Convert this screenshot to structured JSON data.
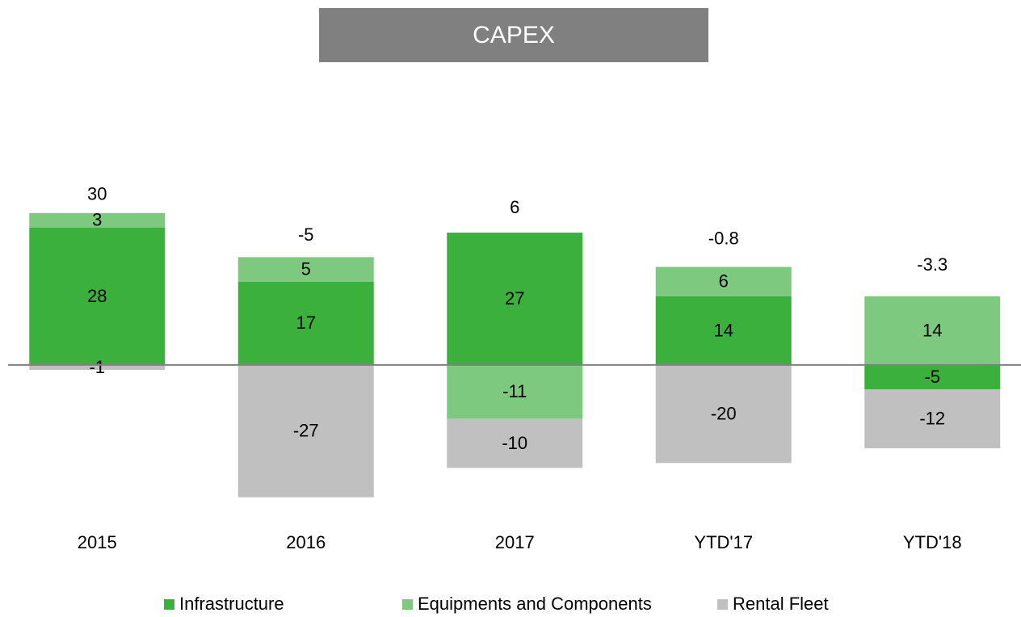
{
  "chart_data": {
    "type": "stacked_bar",
    "title": "CAPEX",
    "categories": [
      "2015",
      "2016",
      "2017",
      "YTD'17",
      "YTD'18"
    ],
    "series": [
      {
        "name": "Infrastructure",
        "color": "#3cb03c",
        "values": [
          28,
          17,
          27,
          14,
          -5
        ]
      },
      {
        "name": "Equipments and Components",
        "color": "#7dc97f",
        "values": [
          3,
          5,
          -11,
          6,
          14
        ]
      },
      {
        "name": "Rental Fleet",
        "color": "#c0c0c0",
        "values": [
          -1,
          -27,
          -10,
          -20,
          -12
        ]
      }
    ],
    "totals": [
      30,
      -5,
      6,
      -0.8,
      -3.3
    ],
    "ylim": [
      -30,
      35
    ],
    "legend": "bottom"
  }
}
